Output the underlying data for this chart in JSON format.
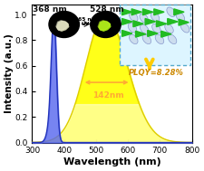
{
  "xlim": [
    300,
    800
  ],
  "ylim": [
    0,
    1.08
  ],
  "xlabel": "Wavelength (nm)",
  "ylabel": "Intensity (a.u.)",
  "excitation_peak": 368,
  "excitation_sigma": 8,
  "emission_peak": 528,
  "emission_fwhm": 142,
  "fwhm_label": "142nm",
  "plqy_label": "PLQY=8.28%",
  "exc_peak_label": "368 nm",
  "em_peak_label": "528 nm",
  "excitation_fill_color": "#5566ee",
  "excitation_line_color": "#2233bb",
  "emission_fill_top": "#ffff00",
  "emission_fill_bottom": "#ffffcc",
  "emission_line_color": "#ddcc00",
  "arrow_color": "#ffaa33",
  "background_color": "#ffffff",
  "xlabel_fontsize": 8,
  "ylabel_fontsize": 7.5,
  "tick_fontsize": 6.5,
  "label_fontsize": 6.5,
  "plqy_fontsize": 6,
  "inset_box_color": "#55aacc",
  "inset_bg_color": "#ddf5ff",
  "triangle_color": "#22bb22",
  "mol_edge_color": "#8899cc",
  "mol_face_color": "#ccddee",
  "arrow_down_color": "#ffcc00"
}
